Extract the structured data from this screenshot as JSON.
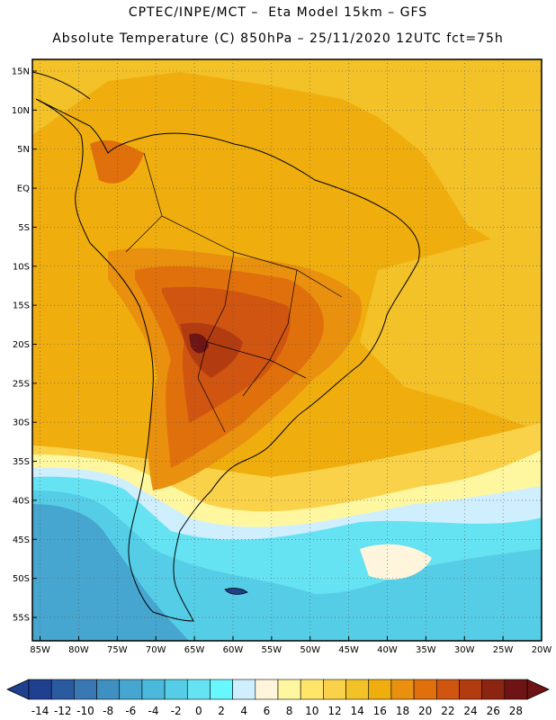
{
  "header": {
    "title_line1": "CPTEC/INPE/MCT –  Eta Model 15km – GFS",
    "title_line2": "Absolute Temperature (C) 850hPa – 25/11/2020 12UTC fct=75h"
  },
  "map": {
    "lat_labels": [
      "15N",
      "10N",
      "5N",
      "EQ",
      "5S",
      "10S",
      "15S",
      "20S",
      "25S",
      "30S",
      "35S",
      "40S",
      "45S",
      "50S",
      "55S"
    ],
    "lat_values": [
      15,
      10,
      5,
      0,
      -5,
      -10,
      -15,
      -20,
      -25,
      -30,
      -35,
      -40,
      -45,
      -50,
      -55
    ],
    "lon_labels": [
      "85W",
      "80W",
      "75W",
      "70W",
      "65W",
      "60W",
      "55W",
      "50W",
      "45W",
      "40W",
      "35W",
      "30W",
      "25W",
      "20W"
    ],
    "lon_values": [
      -85,
      -80,
      -75,
      -70,
      -65,
      -60,
      -55,
      -50,
      -45,
      -40,
      -35,
      -30,
      -25,
      -20
    ]
  },
  "colorbar": {
    "labels": [
      "-14",
      "-12",
      "-10",
      "-8",
      "-6",
      "-4",
      "-2",
      "0",
      "2",
      "4",
      "6",
      "8",
      "10",
      "12",
      "14",
      "16",
      "18",
      "20",
      "22",
      "24",
      "26",
      "28"
    ],
    "colors": [
      "#1f3f8f",
      "#2a5aa0",
      "#3a78b4",
      "#3f8fc0",
      "#46a6cf",
      "#4ab9db",
      "#55cde6",
      "#66e3f2",
      "#66f7ff",
      "#cfefff",
      "#fff5dc",
      "#fff7a0",
      "#ffe66a",
      "#f9d24a",
      "#f3c128",
      "#f0ae0e",
      "#e9900f",
      "#e0700c",
      "#cf5510",
      "#b23b10",
      "#8c2412",
      "#6e1414"
    ]
  }
}
